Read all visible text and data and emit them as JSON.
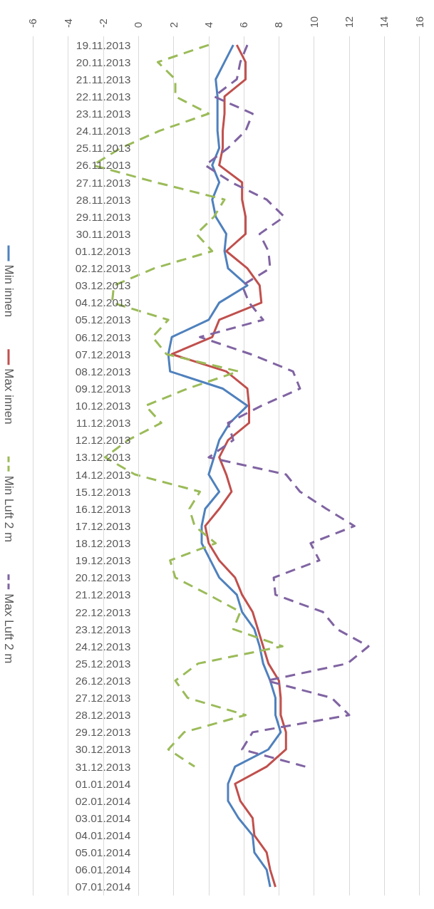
{
  "chart_data": {
    "type": "line",
    "orientation": "horizontal",
    "categories": [
      "19.11.2013",
      "20.11.2013",
      "21.11.2013",
      "22.11.2013",
      "23.11.2013",
      "24.11.2013",
      "25.11.2013",
      "26.11.2013",
      "27.11.2013",
      "28.11.2013",
      "29.11.2013",
      "30.11.2013",
      "01.12.2013",
      "02.12.2013",
      "03.12.2013",
      "04.12.2013",
      "05.12.2013",
      "06.12.2013",
      "07.12.2013",
      "08.12.2013",
      "09.12.2013",
      "10.12.2013",
      "11.12.2013",
      "12.12.2013",
      "13.12.2013",
      "14.12.2013",
      "15.12.2013",
      "16.12.2013",
      "17.12.2013",
      "18.12.2013",
      "19.12.2013",
      "20.12.2013",
      "21.12.2013",
      "22.12.2013",
      "23.12.2013",
      "24.12.2013",
      "25.12.2013",
      "26.12.2013",
      "27.12.2013",
      "28.12.2013",
      "29.12.2013",
      "30.12.2013",
      "31.12.2013",
      "01.01.2014",
      "02.01.2014",
      "03.01.2014",
      "04.01.2014",
      "05.01.2014",
      "06.01.2014",
      "07.01.2014"
    ],
    "series": [
      {
        "name": "Min innen",
        "color": "#4f81bd",
        "line_style": "solid",
        "values": [
          5.4,
          4.9,
          4.4,
          4.5,
          4.5,
          4.5,
          4.6,
          4.2,
          4.6,
          4.2,
          4.4,
          5.0,
          4.9,
          5.1,
          6.2,
          4.6,
          4.0,
          1.9,
          1.7,
          1.8,
          4.8,
          6.2,
          5.2,
          4.6,
          4.3,
          4.0,
          4.6,
          3.8,
          3.6,
          3.6,
          4.1,
          4.6,
          5.6,
          5.9,
          6.6,
          6.9,
          7.1,
          7.5,
          7.8,
          7.8,
          8.1,
          7.4,
          5.5,
          5.1,
          5.1,
          5.7,
          6.5,
          6.6,
          7.3,
          7.5
        ]
      },
      {
        "name": "Max innen",
        "color": "#c0504d",
        "line_style": "solid",
        "values": [
          5.6,
          6.1,
          6.1,
          4.9,
          4.9,
          4.8,
          4.8,
          4.6,
          5.9,
          5.9,
          6.1,
          6.1,
          5.0,
          6.2,
          6.9,
          7.0,
          4.6,
          4.2,
          1.9,
          5.0,
          6.2,
          6.3,
          6.3,
          5.1,
          4.6,
          5.0,
          5.3,
          4.6,
          3.8,
          4.0,
          4.6,
          5.5,
          5.9,
          6.5,
          6.8,
          7.1,
          7.4,
          8.0,
          8.1,
          8.1,
          8.4,
          8.4,
          7.3,
          5.5,
          5.8,
          6.5,
          6.6,
          7.3,
          7.5,
          7.8
        ]
      },
      {
        "name": "Min Luft 2 m",
        "color": "#9bbb59",
        "line_style": "dashed",
        "values": [
          4.0,
          1.1,
          2.1,
          2.1,
          4.0,
          1.2,
          -1.0,
          -2.6,
          1.0,
          4.9,
          4.3,
          3.3,
          4.2,
          0.9,
          -1.4,
          -1.5,
          1.7,
          0.8,
          1.6,
          5.7,
          2.8,
          0.4,
          1.3,
          -0.6,
          -1.9,
          -0.2,
          3.5,
          2.9,
          3.2,
          4.4,
          1.8,
          2.1,
          4.0,
          5.8,
          5.4,
          8.2,
          3.4,
          2.1,
          2.8,
          6.1,
          2.6,
          1.7,
          3.2,
          null,
          null,
          null,
          null,
          null,
          null,
          null
        ]
      },
      {
        "name": "Max Luft 2 m",
        "color": "#8064a2",
        "line_style": "dashed",
        "values": [
          6.2,
          5.8,
          5.6,
          4.3,
          6.5,
          6.1,
          5.1,
          3.8,
          5.3,
          7.3,
          8.3,
          6.9,
          7.4,
          7.5,
          5.9,
          6.3,
          7.1,
          3.5,
          6.4,
          8.8,
          9.2,
          7.0,
          5.1,
          5.4,
          4.0,
          8.4,
          9.2,
          10.7,
          12.3,
          9.8,
          10.3,
          7.7,
          7.8,
          10.5,
          11.3,
          13.1,
          11.9,
          7.3,
          11.0,
          12.0,
          6.5,
          5.9,
          9.5,
          null,
          null,
          null,
          null,
          null,
          null,
          null
        ]
      }
    ],
    "xlim": [
      -6,
      16
    ],
    "xticks": [
      -6,
      -4,
      -2,
      0,
      2,
      4,
      6,
      8,
      10,
      12,
      14,
      16
    ],
    "grid": "x",
    "legend": "left",
    "marker": "none"
  }
}
